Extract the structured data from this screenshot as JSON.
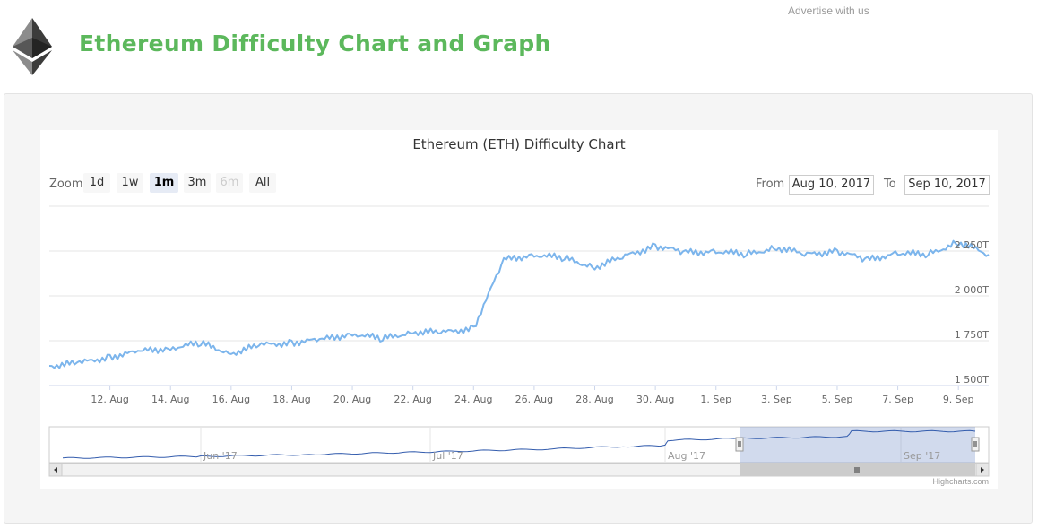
{
  "header": {
    "title": "Ethereum Difficulty Chart and Graph",
    "advertise": "Advertise with us",
    "logo_icon": "ethereum-diamond-icon"
  },
  "chart_data": {
    "type": "line",
    "title": "Ethereum (ETH) Difficulty Chart",
    "xlabel": "",
    "ylabel": "",
    "x_range": [
      "2017-08-10",
      "2017-09-10"
    ],
    "ylim": [
      1500,
      2500
    ],
    "y_unit": "T",
    "y_ticks": [
      "1 500T",
      "1 750T",
      "2 000T",
      "2 250T"
    ],
    "x_ticks": [
      "12. Aug",
      "14. Aug",
      "16. Aug",
      "18. Aug",
      "20. Aug",
      "22. Aug",
      "24. Aug",
      "26. Aug",
      "28. Aug",
      "30. Aug",
      "1. Sep",
      "3. Sep",
      "5. Sep",
      "7. Sep",
      "9. Sep"
    ],
    "series": [
      {
        "color": "#7cb5ec",
        "x": [
          "2017-08-10",
          "2017-08-11",
          "2017-08-12",
          "2017-08-13",
          "2017-08-14",
          "2017-08-15",
          "2017-08-16",
          "2017-08-17",
          "2017-08-18",
          "2017-08-19",
          "2017-08-20",
          "2017-08-21",
          "2017-08-22",
          "2017-08-23",
          "2017-08-24",
          "2017-08-25",
          "2017-08-26",
          "2017-08-27",
          "2017-08-28",
          "2017-08-29",
          "2017-08-30",
          "2017-08-31",
          "2017-09-01",
          "2017-09-02",
          "2017-09-03",
          "2017-09-04",
          "2017-09-05",
          "2017-09-06",
          "2017-09-07",
          "2017-09-08",
          "2017-09-09",
          "2017-09-10"
        ],
        "values": [
          1610,
          1625,
          1660,
          1690,
          1710,
          1735,
          1680,
          1725,
          1740,
          1755,
          1790,
          1760,
          1800,
          1795,
          1820,
          2200,
          2230,
          2210,
          2160,
          2220,
          2280,
          2240,
          2250,
          2230,
          2270,
          2230,
          2250,
          2200,
          2240,
          2230,
          2300,
          2230
        ]
      }
    ],
    "navigator": {
      "x_ticks": [
        "Jun '17",
        "Jul '17",
        "Aug '17",
        "Sep '17"
      ]
    }
  },
  "toolbar": {
    "zoom_label": "Zoom",
    "zoom_buttons": [
      "1d",
      "1w",
      "1m",
      "3m",
      "6m",
      "All"
    ],
    "from_label": "From",
    "from_value": "Aug 10, 2017",
    "to_label": "To",
    "to_value": "Sep 10, 2017"
  },
  "credits": "Highcharts.com"
}
